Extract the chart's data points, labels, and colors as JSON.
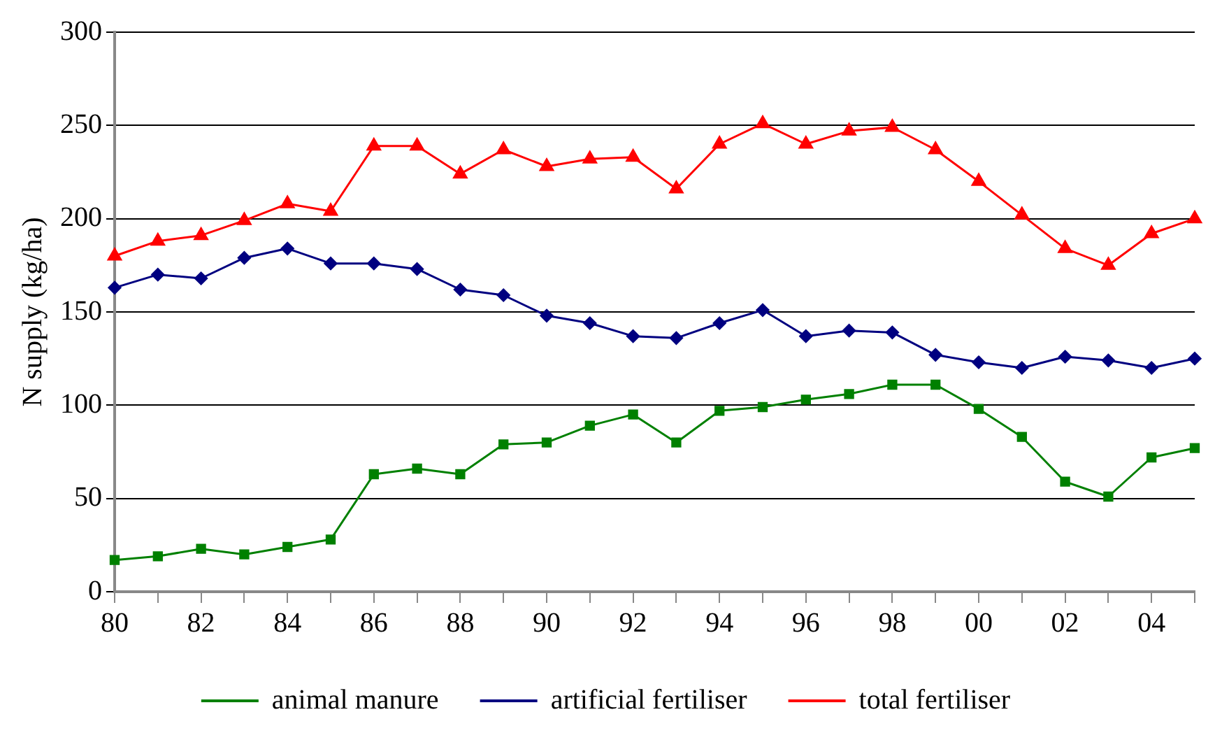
{
  "chart_data": {
    "type": "line",
    "ylabel": "N supply (kg/ha)",
    "categories": [
      "80",
      null,
      "82",
      null,
      "84",
      null,
      "86",
      null,
      "88",
      null,
      "90",
      null,
      "92",
      null,
      "94",
      null,
      "96",
      null,
      "98",
      null,
      "00",
      null,
      "02",
      null,
      "04",
      null
    ],
    "series": [
      {
        "name": "animal manure",
        "color": "#008000",
        "marker": "square",
        "values": [
          17,
          19,
          23,
          20,
          24,
          28,
          63,
          66,
          63,
          79,
          80,
          89,
          95,
          80,
          97,
          99,
          103,
          106,
          111,
          111,
          98,
          83,
          59,
          51,
          72,
          77
        ]
      },
      {
        "name": "artificial fertiliser",
        "color": "#000080",
        "marker": "diamond",
        "values": [
          163,
          170,
          168,
          179,
          184,
          176,
          176,
          173,
          162,
          159,
          148,
          144,
          137,
          136,
          144,
          151,
          137,
          140,
          139,
          127,
          123,
          120,
          126,
          124,
          120,
          125
        ]
      },
      {
        "name": "total fertiliser",
        "color": "#ff0000",
        "marker": "triangle",
        "values": [
          180,
          188,
          191,
          199,
          208,
          204,
          239,
          239,
          224,
          237,
          228,
          232,
          233,
          216,
          240,
          251,
          240,
          247,
          249,
          237,
          220,
          202,
          184,
          175,
          192,
          200
        ]
      }
    ],
    "ylim": [
      0,
      300
    ],
    "yticks": [
      0,
      50,
      100,
      150,
      200,
      250,
      300
    ],
    "grid": "y",
    "legend": "bottom",
    "line_style": "solid"
  }
}
